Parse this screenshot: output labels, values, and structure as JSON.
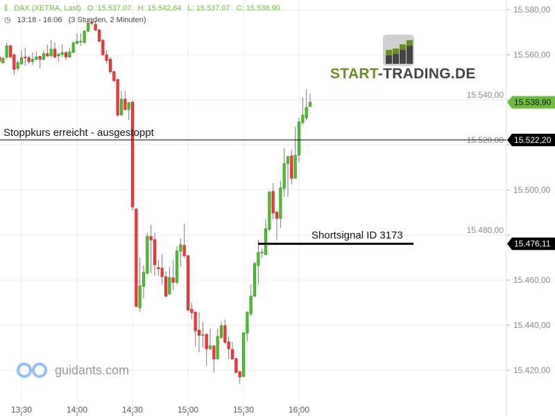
{
  "header": {
    "instrument": "DAX (XETRA, Last)",
    "open": "O: 15.537,07",
    "high": "H: 15.542,64",
    "low": "L: 15.537,07",
    "close": "C: 15.538,90",
    "range": "13:18 - 16:06",
    "duration": "(3 Stunden, 2 Minuten)"
  },
  "logos": {
    "start_trading_a": "START",
    "start_trading_b": "-TRADING.DE",
    "guidants": "guidants.com"
  },
  "annotations": {
    "stop": {
      "text": "Stoppkurs erreicht - ausgestoppt",
      "price": 15522.2,
      "tag": "15.522,20"
    },
    "short": {
      "text": "Shortsignal ID 3173",
      "price": 15476.11,
      "tag": "15.476,11"
    },
    "last": {
      "price": 15538.9,
      "tag": "15.538,90"
    }
  },
  "colors": {
    "up": "#3a9d23",
    "down": "#e02020",
    "last_tag": "#6cbf3b",
    "line_tag": "#000000",
    "grid": "#ebebeb",
    "wick": "#777777"
  },
  "chart_data": {
    "type": "candlestick",
    "title": "DAX (XETRA, Last)",
    "interval": "2 Minuten",
    "ylim": [
      15410,
      15585
    ],
    "y_ticks": [
      15580,
      15560,
      15540,
      15520,
      15500,
      15480,
      15460,
      15440,
      15420
    ],
    "y_tick_labels": [
      "15.580,00",
      "15.560,00",
      "15.540,00",
      "15.520,00",
      "15.500,00",
      "15.480,00",
      "15.460,00",
      "15.440,00",
      "15.420,00"
    ],
    "x_ticks": [
      "13:30",
      "14:00",
      "14:30",
      "15:00",
      "15:30",
      "16:00"
    ],
    "grid": true,
    "times": [
      "13:18",
      "13:20",
      "13:22",
      "13:24",
      "13:26",
      "13:28",
      "13:30",
      "13:32",
      "13:34",
      "13:36",
      "13:38",
      "13:40",
      "13:42",
      "13:44",
      "13:46",
      "13:48",
      "13:50",
      "13:52",
      "13:54",
      "13:56",
      "13:58",
      "14:00",
      "14:02",
      "14:04",
      "14:06",
      "14:08",
      "14:10",
      "14:12",
      "14:14",
      "14:16",
      "14:18",
      "14:20",
      "14:22",
      "14:24",
      "14:26",
      "14:28",
      "14:30",
      "14:32",
      "14:34",
      "14:36",
      "14:38",
      "14:40",
      "14:42",
      "14:44",
      "14:46",
      "14:48",
      "14:50",
      "14:52",
      "14:54",
      "14:56",
      "14:58",
      "15:00",
      "15:02",
      "15:04",
      "15:06",
      "15:08",
      "15:10",
      "15:12",
      "15:14",
      "15:16",
      "15:18",
      "15:20",
      "15:22",
      "15:24",
      "15:26",
      "15:28",
      "15:30",
      "15:32",
      "15:34",
      "15:36",
      "15:38",
      "15:40",
      "15:42",
      "15:44",
      "15:46",
      "15:48",
      "15:50",
      "15:52",
      "15:54",
      "15:56",
      "15:58",
      "16:00",
      "16:02",
      "16:04",
      "16:06"
    ],
    "ohlc": [
      [
        15559,
        15561,
        15556,
        15557
      ],
      [
        15556.5,
        15559,
        15556,
        15558.5
      ],
      [
        15559,
        15565.5,
        15558,
        15564
      ],
      [
        15564,
        15564.5,
        15559,
        15559
      ],
      [
        15560,
        15560.5,
        15551,
        15553.5
      ],
      [
        15554,
        15557.5,
        15553,
        15556.5
      ],
      [
        15556,
        15562,
        15555.5,
        15558.7
      ],
      [
        15559,
        15563,
        15555,
        15558.7
      ],
      [
        15558.7,
        15559.5,
        15556,
        15557
      ],
      [
        15557,
        15561,
        15555.5,
        15558
      ],
      [
        15558,
        15561.5,
        15557.5,
        15559
      ],
      [
        15559.3,
        15559.5,
        15554,
        15558
      ],
      [
        15558,
        15562,
        15557.5,
        15560.5
      ],
      [
        15560.5,
        15564.5,
        15559,
        15559.5
      ],
      [
        15559.5,
        15566.5,
        15559,
        15562.5
      ],
      [
        15562.5,
        15565.5,
        15558.5,
        15559
      ],
      [
        15559.5,
        15561,
        15557,
        15560.2
      ],
      [
        15560.1,
        15564.5,
        15559,
        15561
      ],
      [
        15561,
        15561.5,
        15557.5,
        15559
      ],
      [
        15559,
        15563,
        15558.7,
        15561.3
      ],
      [
        15561,
        15566,
        15561,
        15565.3
      ],
      [
        15565,
        15569.5,
        15564.5,
        15566
      ],
      [
        15565.8,
        15569.5,
        15564,
        15566
      ],
      [
        15565.5,
        15571,
        15565,
        15570.5
      ],
      [
        15570.5,
        15576,
        15570,
        15574
      ],
      [
        15574.5,
        15576,
        15573,
        15574
      ],
      [
        15573.5,
        15575,
        15570.5,
        15571
      ],
      [
        15571,
        15571.5,
        15565.5,
        15566
      ],
      [
        15566.5,
        15566.5,
        15559.5,
        15560
      ],
      [
        15560,
        15562,
        15556,
        15557.5
      ],
      [
        15558,
        15559,
        15551.5,
        15552.5
      ],
      [
        15552.5,
        15553,
        15548,
        15548.5
      ],
      [
        15549,
        15549.5,
        15532.5,
        15533.2
      ],
      [
        15533.2,
        15544,
        15533,
        15540.3
      ],
      [
        15540.3,
        15544,
        15535.5,
        15535.7
      ],
      [
        15535.7,
        15539,
        15531,
        15538.8
      ],
      [
        15539,
        15539.5,
        15491,
        15492.5
      ],
      [
        15491.5,
        15492,
        15448,
        15448.3
      ],
      [
        15447.7,
        15470,
        15446,
        15457.5
      ],
      [
        15457.2,
        15466.5,
        15452,
        15463.4
      ],
      [
        15463,
        15481,
        15462.5,
        15479.4
      ],
      [
        15479.4,
        15484.5,
        15463,
        15477.8
      ],
      [
        15478,
        15481,
        15462,
        15466.8
      ],
      [
        15465.6,
        15469,
        15462,
        15465
      ],
      [
        15465.3,
        15471.6,
        15458,
        15461.5
      ],
      [
        15461.5,
        15464,
        15452.5,
        15452.8
      ],
      [
        15453.8,
        15466,
        15453.5,
        15461.2
      ],
      [
        15461,
        15469,
        15455.5,
        15459
      ],
      [
        15459,
        15475,
        15458,
        15472.9
      ],
      [
        15472.9,
        15478.6,
        15466,
        15475.7
      ],
      [
        15475.4,
        15485,
        15470,
        15470.8
      ],
      [
        15470.8,
        15471,
        15446,
        15446.8
      ],
      [
        15447,
        15450,
        15442.6,
        15445.5
      ],
      [
        15445.8,
        15446,
        15430.5,
        15437.5
      ],
      [
        15437.8,
        15446,
        15428,
        15435.5
      ],
      [
        15435.5,
        15441.6,
        15430,
        15435.7
      ],
      [
        15436,
        15436,
        15422,
        15429.5
      ],
      [
        15429.5,
        15438.5,
        15429,
        15430.8
      ],
      [
        15430.8,
        15431,
        15419,
        15425
      ],
      [
        15425,
        15438.5,
        15424.8,
        15435
      ],
      [
        15434.5,
        15441.5,
        15434,
        15439.8
      ],
      [
        15439.8,
        15442.5,
        15432,
        15432.3
      ],
      [
        15432.6,
        15435,
        15425,
        15429.5
      ],
      [
        15429.2,
        15432.5,
        15424.6,
        15425
      ],
      [
        15425.2,
        15425.5,
        15418.7,
        15419
      ],
      [
        15419.4,
        15419.5,
        15414,
        15417
      ],
      [
        15417.2,
        15437,
        15417,
        15436.6
      ],
      [
        15436.4,
        15446,
        15432.7,
        15445.8
      ],
      [
        15445,
        15458,
        15444,
        15452.9
      ],
      [
        15452.9,
        15468,
        15452.5,
        15467.4
      ],
      [
        15466.5,
        15477.8,
        15458,
        15472.3
      ],
      [
        15472.2,
        15474,
        15469.7,
        15472.4
      ],
      [
        15471.4,
        15487,
        15471,
        15482.8
      ],
      [
        15482.5,
        15499.5,
        15482,
        15499.1
      ],
      [
        15499.4,
        15503,
        15487,
        15489.8
      ],
      [
        15490.2,
        15490.5,
        15477.7,
        15487.4
      ],
      [
        15487.4,
        15504,
        15483,
        15500.9
      ],
      [
        15500.6,
        15518.6,
        15496.9,
        15511.7
      ],
      [
        15511.7,
        15515,
        15497,
        15514.8
      ],
      [
        15515.1,
        15517.8,
        15502.6,
        15505.2
      ],
      [
        15505.2,
        15528,
        15505,
        15515.4
      ],
      [
        15515.4,
        15532,
        15512,
        15530.2
      ],
      [
        15529.9,
        15541,
        15529,
        15533.2
      ],
      [
        15532,
        15544.7,
        15531,
        15536.6
      ],
      [
        15537.07,
        15542.64,
        15537.07,
        15538.9
      ]
    ]
  }
}
